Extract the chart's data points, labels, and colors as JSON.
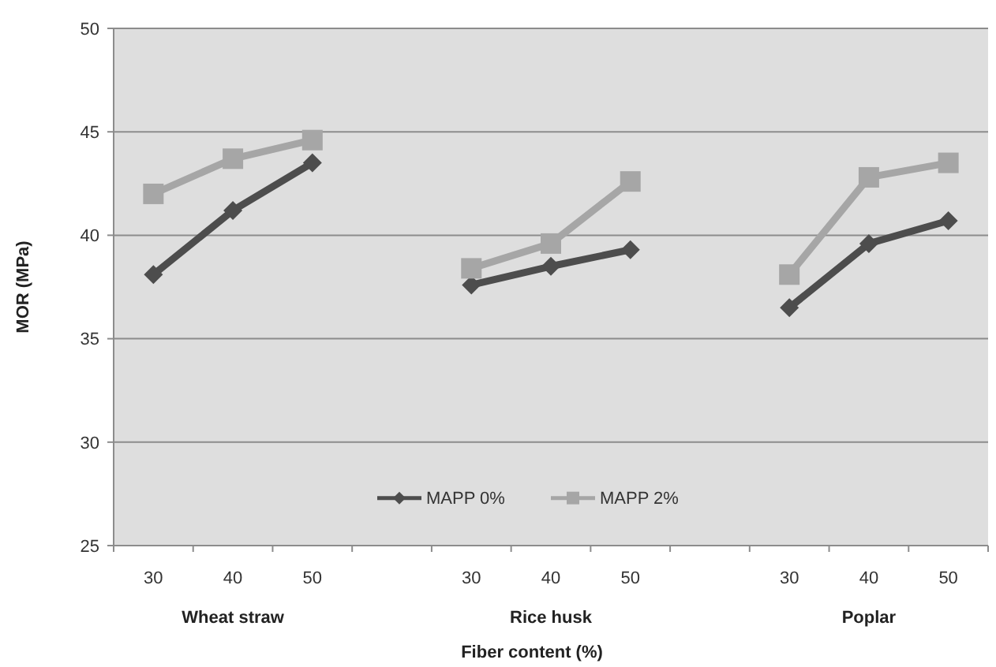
{
  "chart_data": {
    "type": "line",
    "xlabel": "Fiber content (%)",
    "ylabel": "MOR (MPa)",
    "categories": [
      "30",
      "40",
      "50",
      null,
      "30",
      "40",
      "50",
      null,
      "30",
      "40",
      "50"
    ],
    "series": [
      {
        "name": "MAPP 0%",
        "color": "#4d4d4d",
        "marker": "diamond",
        "values": [
          38.1,
          41.2,
          43.5,
          null,
          37.6,
          38.5,
          39.3,
          null,
          36.5,
          39.6,
          40.7
        ]
      },
      {
        "name": "MAPP 2%",
        "color": "#a6a6a6",
        "marker": "square",
        "values": [
          42.0,
          43.7,
          44.6,
          null,
          38.4,
          39.6,
          42.6,
          null,
          38.1,
          42.8,
          43.5
        ]
      }
    ],
    "annotations": [
      "Wheat straw",
      "Rice husk",
      "Poplar"
    ],
    "ylim": [
      25,
      50
    ],
    "yticks": [
      25,
      30,
      35,
      40,
      45,
      50
    ],
    "grid": "y",
    "legend": "bottom"
  }
}
